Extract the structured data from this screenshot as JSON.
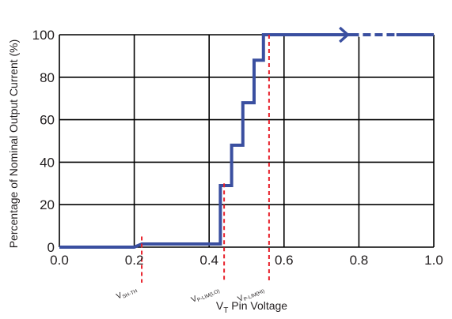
{
  "chart_data": {
    "type": "line",
    "xlabel_main": "V",
    "xlabel_sub": "T",
    "xlabel_rest": " Pin Voltage",
    "ylabel": "Percentage of Nominal Output Current (%)",
    "xlim": [
      0.0,
      1.0
    ],
    "ylim": [
      0,
      100
    ],
    "x_ticks": [
      "0.0",
      "0.2",
      "0.4",
      "0.6",
      "0.8",
      "1.0"
    ],
    "y_ticks": [
      "0",
      "20",
      "40",
      "60",
      "80",
      "100"
    ],
    "grid": true,
    "series": [
      {
        "color": "#3a4fa0",
        "x": [
          0.0,
          0.2,
          0.22,
          0.43,
          0.43,
          0.46,
          0.46,
          0.49,
          0.49,
          0.52,
          0.52,
          0.545,
          0.545,
          0.56,
          0.72,
          1.0
        ],
        "y": [
          0,
          0,
          1.5,
          1.5,
          29,
          29,
          48,
          48,
          68,
          68,
          88,
          88,
          100,
          100,
          100,
          100
        ]
      }
    ],
    "arrow": {
      "x": 0.77,
      "y": 100,
      "color": "#3a4fa0"
    },
    "markers": [
      {
        "main": "V",
        "sub": "SH-TH",
        "x": 0.22,
        "line_top": 5,
        "color": "#e8202a"
      },
      {
        "main": "V",
        "sub": "P-LIM(LO)",
        "x": 0.44,
        "line_top": 30,
        "color": "#e8202a"
      },
      {
        "main": "V",
        "sub": "P-LIM(HI)",
        "x": 0.56,
        "line_top": 100,
        "color": "#e8202a"
      }
    ]
  }
}
